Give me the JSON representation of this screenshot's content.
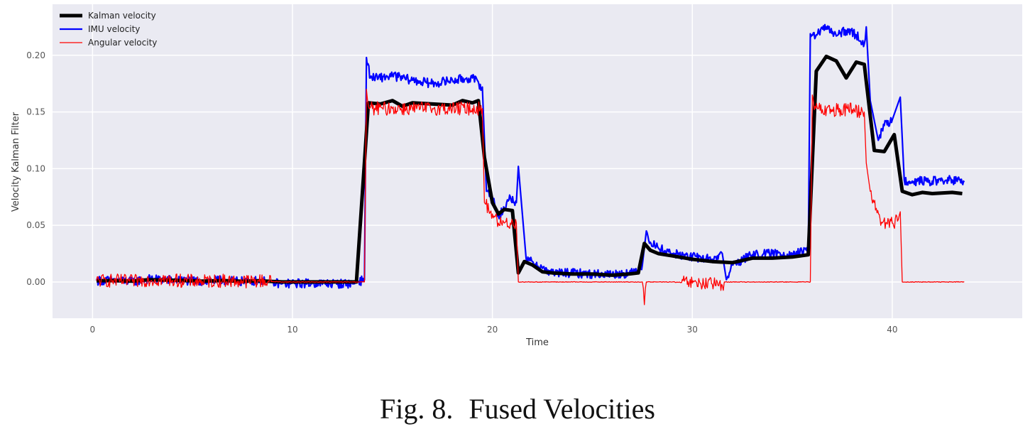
{
  "caption": {
    "label": "Fig. 8.",
    "text": "Fused Velocities"
  },
  "chart_data": {
    "type": "line",
    "title": "",
    "xlabel": "Time",
    "ylabel": "Velocity Kalman Filter",
    "xlim": [
      -2,
      46.5
    ],
    "ylim": [
      -0.032,
      0.245
    ],
    "xticks": [
      0,
      10,
      20,
      30,
      40
    ],
    "yticks": [
      0.0,
      0.05,
      0.1,
      0.15,
      0.2
    ],
    "ytick_labels": [
      "0.00",
      "0.05",
      "0.10",
      "0.15",
      "0.20"
    ],
    "grid": true,
    "background": "#eaeaf2",
    "legend": "top-left",
    "series": [
      {
        "name": "Kalman velocity",
        "color": "#000000",
        "noise": 0,
        "x": [
          0.2,
          1,
          2,
          2.8,
          4,
          5.5,
          6.5,
          7.5,
          8.3,
          9.5,
          11,
          12,
          13.2,
          13.8,
          14.4,
          15,
          15.5,
          16,
          17,
          18,
          18.5,
          19,
          19.3,
          19.6,
          20,
          20.3,
          20.6,
          21,
          21.3,
          21.6,
          22,
          22.5,
          23,
          24,
          25,
          26,
          26.8,
          27.3,
          27.6,
          27.9,
          28.3,
          29,
          30,
          31,
          32,
          33,
          34,
          35,
          35.8,
          36.2,
          36.7,
          37.2,
          37.7,
          38.2,
          38.6,
          39.1,
          39.6,
          40.1,
          40.5,
          41,
          41.5,
          42,
          43,
          43.5
        ],
        "y": [
          0.001,
          0.0012,
          0.0008,
          0.002,
          0.0015,
          0.0008,
          0.0012,
          0.0006,
          0.001,
          0,
          0,
          0,
          0,
          0.158,
          0.157,
          0.16,
          0.155,
          0.158,
          0.157,
          0.156,
          0.16,
          0.158,
          0.16,
          0.11,
          0.07,
          0.06,
          0.064,
          0.063,
          0.008,
          0.018,
          0.015,
          0.009,
          0.008,
          0.007,
          0.007,
          0.006,
          0.007,
          0.008,
          0.034,
          0.028,
          0.025,
          0.023,
          0.02,
          0.018,
          0.017,
          0.021,
          0.021,
          0.022,
          0.024,
          0.186,
          0.199,
          0.195,
          0.18,
          0.194,
          0.192,
          0.116,
          0.115,
          0.13,
          0.08,
          0.077,
          0.079,
          0.078,
          0.079,
          0.078
        ]
      },
      {
        "name": "IMU velocity",
        "color": "#0000ff",
        "noise": 0.004,
        "x": [
          0.2,
          1,
          2,
          2.8,
          4,
          5.5,
          6.5,
          7.5,
          8.3,
          9.5,
          11,
          12,
          13,
          13.6,
          13.7,
          13.9,
          14.3,
          15,
          16,
          17,
          18,
          19,
          19.5,
          19.7,
          20,
          20.3,
          20.6,
          20.9,
          21.2,
          21.3,
          21.7,
          22,
          22.5,
          23,
          24,
          25,
          26,
          27,
          27.5,
          27.7,
          27.9,
          28.3,
          29,
          30,
          31,
          31.5,
          31.7,
          32,
          33,
          34,
          35,
          35.8,
          35.9,
          36.2,
          36.7,
          37.2,
          37.7,
          38.2,
          38.6,
          38.7,
          38.9,
          39.3,
          39.6,
          40,
          40.4,
          40.6,
          41,
          42,
          43,
          43.6
        ],
        "y": [
          0.0012,
          0.0015,
          0.0005,
          0.0025,
          0.0018,
          0.0005,
          0.0015,
          0.0005,
          0.0012,
          -0.0015,
          -0.001,
          -0.0015,
          -0.0015,
          0.002,
          0.198,
          0.18,
          0.18,
          0.182,
          0.178,
          0.175,
          0.178,
          0.18,
          0.172,
          0.08,
          0.075,
          0.058,
          0.065,
          0.075,
          0.07,
          0.102,
          0.018,
          0.018,
          0.012,
          0.008,
          0.008,
          0.007,
          0.007,
          0.008,
          0.015,
          0.045,
          0.035,
          0.03,
          0.025,
          0.022,
          0.02,
          0.025,
          0.002,
          0.015,
          0.024,
          0.025,
          0.025,
          0.027,
          0.219,
          0.218,
          0.225,
          0.217,
          0.222,
          0.218,
          0.21,
          0.225,
          0.16,
          0.125,
          0.138,
          0.143,
          0.163,
          0.09,
          0.089,
          0.089,
          0.09,
          0.088
        ]
      },
      {
        "name": "Angular velocity",
        "color": "#ff0000",
        "noise": 0.006,
        "x": [
          0.2,
          1,
          2,
          2.8,
          4,
          5.5,
          6.5,
          7.5,
          8.3,
          9.5,
          11,
          12,
          13,
          13.6,
          13.7,
          13.8,
          14,
          15,
          16,
          17,
          18,
          19,
          19.5,
          19.6,
          20,
          20.3,
          20.6,
          20.9,
          21.2,
          21.3,
          21.7,
          22,
          23,
          25,
          27,
          27.5,
          27.6,
          27.7,
          28,
          29,
          30,
          31,
          31.5,
          31.6,
          33,
          35,
          35.9,
          36,
          36.1,
          36.5,
          37,
          38,
          38.6,
          38.7,
          38.9,
          39.2,
          39.5,
          40,
          40.3,
          40.4,
          40.5,
          42,
          43.6
        ],
        "y": [
          0.001,
          0.0012,
          0.0005,
          0.002,
          0.0015,
          0.0005,
          0.0012,
          0.0005,
          0.001,
          0,
          0,
          0,
          0,
          0,
          0.17,
          0.155,
          0.153,
          0.153,
          0.153,
          0.153,
          0.153,
          0.153,
          0.153,
          0.07,
          0.06,
          0.052,
          0.052,
          0.052,
          0.052,
          0,
          0,
          0,
          0,
          0,
          0,
          0,
          -0.02,
          0,
          0,
          0,
          -0.001,
          -0.002,
          -0.003,
          0,
          0,
          0,
          0,
          0.165,
          0.152,
          0.152,
          0.152,
          0.152,
          0.15,
          0.105,
          0.08,
          0.065,
          0.052,
          0.052,
          0.055,
          0.062,
          0,
          0,
          0
        ]
      }
    ]
  }
}
